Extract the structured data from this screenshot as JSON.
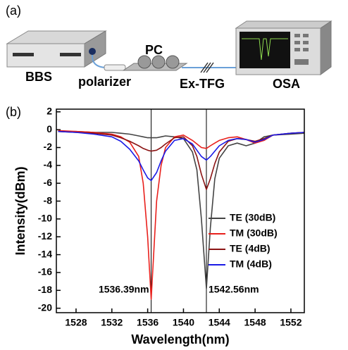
{
  "diagram": {
    "panel_label": "(a)",
    "labels": [
      "BBS",
      "polarizer",
      "PC",
      "Ex-TFG",
      "OSA"
    ]
  },
  "chart_data": {
    "type": "line",
    "panel_label": "(b)",
    "x_label": "Wavelength(nm)",
    "y_label": "Intensity(dBm)",
    "x": [
      1526,
      1528,
      1530,
      1532,
      1533,
      1534,
      1535,
      1535.5,
      1536,
      1536.39,
      1537,
      1537.5,
      1538,
      1539,
      1540,
      1541,
      1541.5,
      1542,
      1542.56,
      1543,
      1543.5,
      1544,
      1545,
      1546,
      1547,
      1548,
      1549,
      1550,
      1552,
      1553.5
    ],
    "series": [
      {
        "name": "TE (30dB)",
        "color": "#444444",
        "values": [
          -0.2,
          -0.2,
          -0.3,
          -0.3,
          -0.4,
          -0.5,
          -0.7,
          -0.8,
          -0.9,
          -0.9,
          -0.9,
          -0.8,
          -0.7,
          -0.8,
          -1.0,
          -2.5,
          -4.5,
          -10,
          -17.8,
          -11,
          -5.5,
          -3.2,
          -1.8,
          -1.5,
          -1.8,
          -1.5,
          -0.8,
          -0.6,
          -0.5,
          -0.4
        ]
      },
      {
        "name": "TM (30dB)",
        "color": "#e8201c",
        "values": [
          -0.1,
          -0.2,
          -0.3,
          -0.5,
          -0.8,
          -1.4,
          -3,
          -6,
          -12,
          -19,
          -8,
          -4,
          -2,
          -0.8,
          -0.6,
          -1.2,
          -1.6,
          -2,
          -2.1,
          -1.8,
          -1.5,
          -1.2,
          -0.9,
          -0.8,
          -1.1,
          -1.5,
          -1.2,
          -0.6,
          -0.4,
          -0.3
        ]
      },
      {
        "name": "TE (4dB)",
        "color": "#8b1414",
        "values": [
          -0.2,
          -0.3,
          -0.4,
          -0.6,
          -0.9,
          -1.3,
          -1.8,
          -2.1,
          -2.3,
          -2.4,
          -2.3,
          -2.0,
          -1.6,
          -0.9,
          -0.8,
          -1.8,
          -3.0,
          -5,
          -6.7,
          -5.5,
          -3.8,
          -2.5,
          -1.3,
          -1.0,
          -1.1,
          -1.3,
          -1.0,
          -0.6,
          -0.4,
          -0.3
        ]
      },
      {
        "name": "TM (4dB)",
        "color": "#1a1ae6",
        "values": [
          -0.2,
          -0.3,
          -0.5,
          -0.8,
          -1.3,
          -2.2,
          -3.5,
          -4.5,
          -5.4,
          -5.7,
          -4.8,
          -3.5,
          -2.4,
          -1.2,
          -1.0,
          -1.6,
          -2.3,
          -3.0,
          -3.4,
          -3.0,
          -2.4,
          -1.8,
          -1.2,
          -1.0,
          -1.1,
          -1.4,
          -1.1,
          -0.6,
          -0.4,
          -0.3
        ]
      }
    ],
    "annotations": [
      {
        "x": 1536.39,
        "label": "1536.39nm"
      },
      {
        "x": 1542.56,
        "label": "1542.56nm"
      }
    ],
    "xlim": [
      1525.8,
      1553.5
    ],
    "ylim": [
      -20.5,
      2.3
    ],
    "xticks": [
      1528,
      1532,
      1536,
      1540,
      1544,
      1548,
      1552
    ],
    "yticks": [
      -20,
      -18,
      -16,
      -14,
      -12,
      -10,
      -8,
      -6,
      -4,
      -2,
      0,
      2
    ],
    "legend_loc": "center right"
  }
}
